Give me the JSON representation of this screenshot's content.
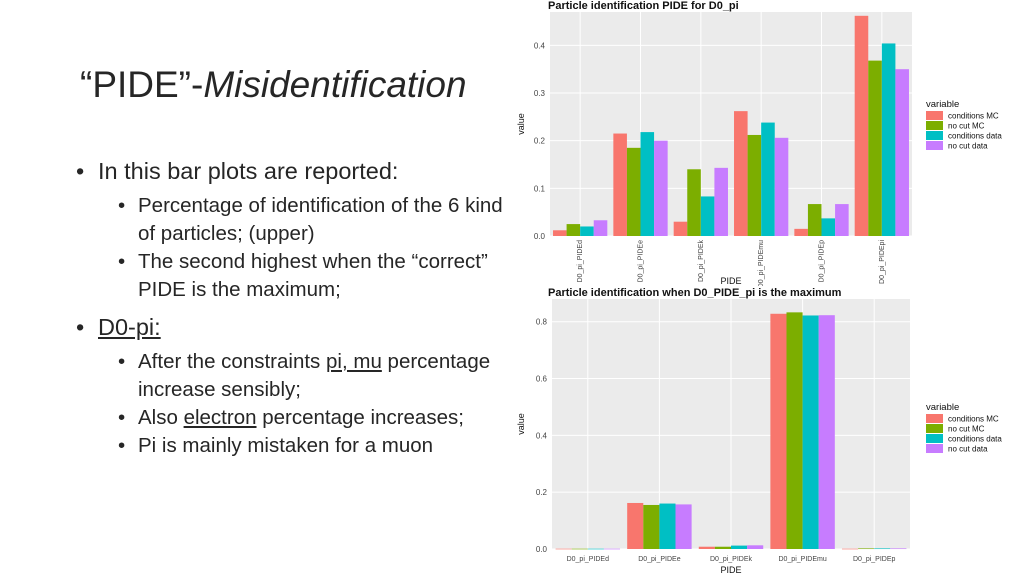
{
  "slide": {
    "title_quoted": "“PIDE”-",
    "title_italic": "Misidentification",
    "bullets": {
      "b1": "In this bar plots are reported:",
      "b1a": "Percentage of identification of the 6 kind of particles; (upper)",
      "b1b": "The second highest when the “correct” PIDE is the maximum;",
      "b2": "D0-pi:",
      "b2a_pre": "After the constraints ",
      "b2a_u": "pi, mu",
      "b2a_post": " percentage increase sensibly;",
      "b2b_pre": "Also ",
      "b2b_u": "electron",
      "b2b_post": " percentage increases;",
      "b2c": "Pi is mainly mistaken for a muon"
    }
  },
  "colors": {
    "conditions MC": "#F8766D",
    "no cut MC": "#7CAE00",
    "conditions data": "#00BFC4",
    "no cut data": "#C77CFF",
    "panel": "#EBEBEB",
    "grid": "#ffffff"
  },
  "chart_data": [
    {
      "type": "bar",
      "title": "Particle identification PIDE for D0_pi",
      "xlabel": "PIDE",
      "ylabel": "value",
      "categories": [
        "D0_pi_PIDEd",
        "D0_pi_PIDEe",
        "D0_pi_PIDEk",
        "D0_pi_PIDEmu",
        "D0_pi_PIDEp",
        "D0_pi_PIDEpi"
      ],
      "ylim": [
        0,
        0.47
      ],
      "yticks": [
        "0.0",
        "0.1",
        "0.2",
        "0.3",
        "0.4"
      ],
      "legend_title": "variable",
      "legend_position": "right",
      "grid": true,
      "series": [
        {
          "name": "conditions MC",
          "values": [
            0.012,
            0.215,
            0.03,
            0.262,
            0.015,
            0.462
          ]
        },
        {
          "name": "no cut MC",
          "values": [
            0.025,
            0.185,
            0.14,
            0.212,
            0.067,
            0.368
          ]
        },
        {
          "name": "conditions data",
          "values": [
            0.02,
            0.218,
            0.083,
            0.238,
            0.037,
            0.404
          ]
        },
        {
          "name": "no cut data",
          "values": [
            0.033,
            0.2,
            0.143,
            0.206,
            0.067,
            0.35
          ]
        }
      ]
    },
    {
      "type": "bar",
      "title": "Particle identification when D0_PIDE_pi is the maximum",
      "xlabel": "PIDE",
      "ylabel": "value",
      "categories": [
        "D0_pi_PIDEd",
        "D0_pi_PIDEe",
        "D0_pi_PIDEk",
        "D0_pi_PIDEmu",
        "D0_pi_PIDEp"
      ],
      "ylim": [
        0,
        0.88
      ],
      "yticks": [
        "0.0",
        "0.2",
        "0.4",
        "0.6",
        "0.8"
      ],
      "legend_title": "variable",
      "legend_position": "right",
      "grid": true,
      "series": [
        {
          "name": "conditions MC",
          "values": [
            0.001,
            0.162,
            0.008,
            0.828,
            0.001
          ]
        },
        {
          "name": "no cut MC",
          "values": [
            0.001,
            0.155,
            0.008,
            0.833,
            0.002
          ]
        },
        {
          "name": "conditions data",
          "values": [
            0.001,
            0.16,
            0.012,
            0.822,
            0.002
          ]
        },
        {
          "name": "no cut data",
          "values": [
            0.001,
            0.157,
            0.013,
            0.823,
            0.002
          ]
        }
      ]
    }
  ]
}
